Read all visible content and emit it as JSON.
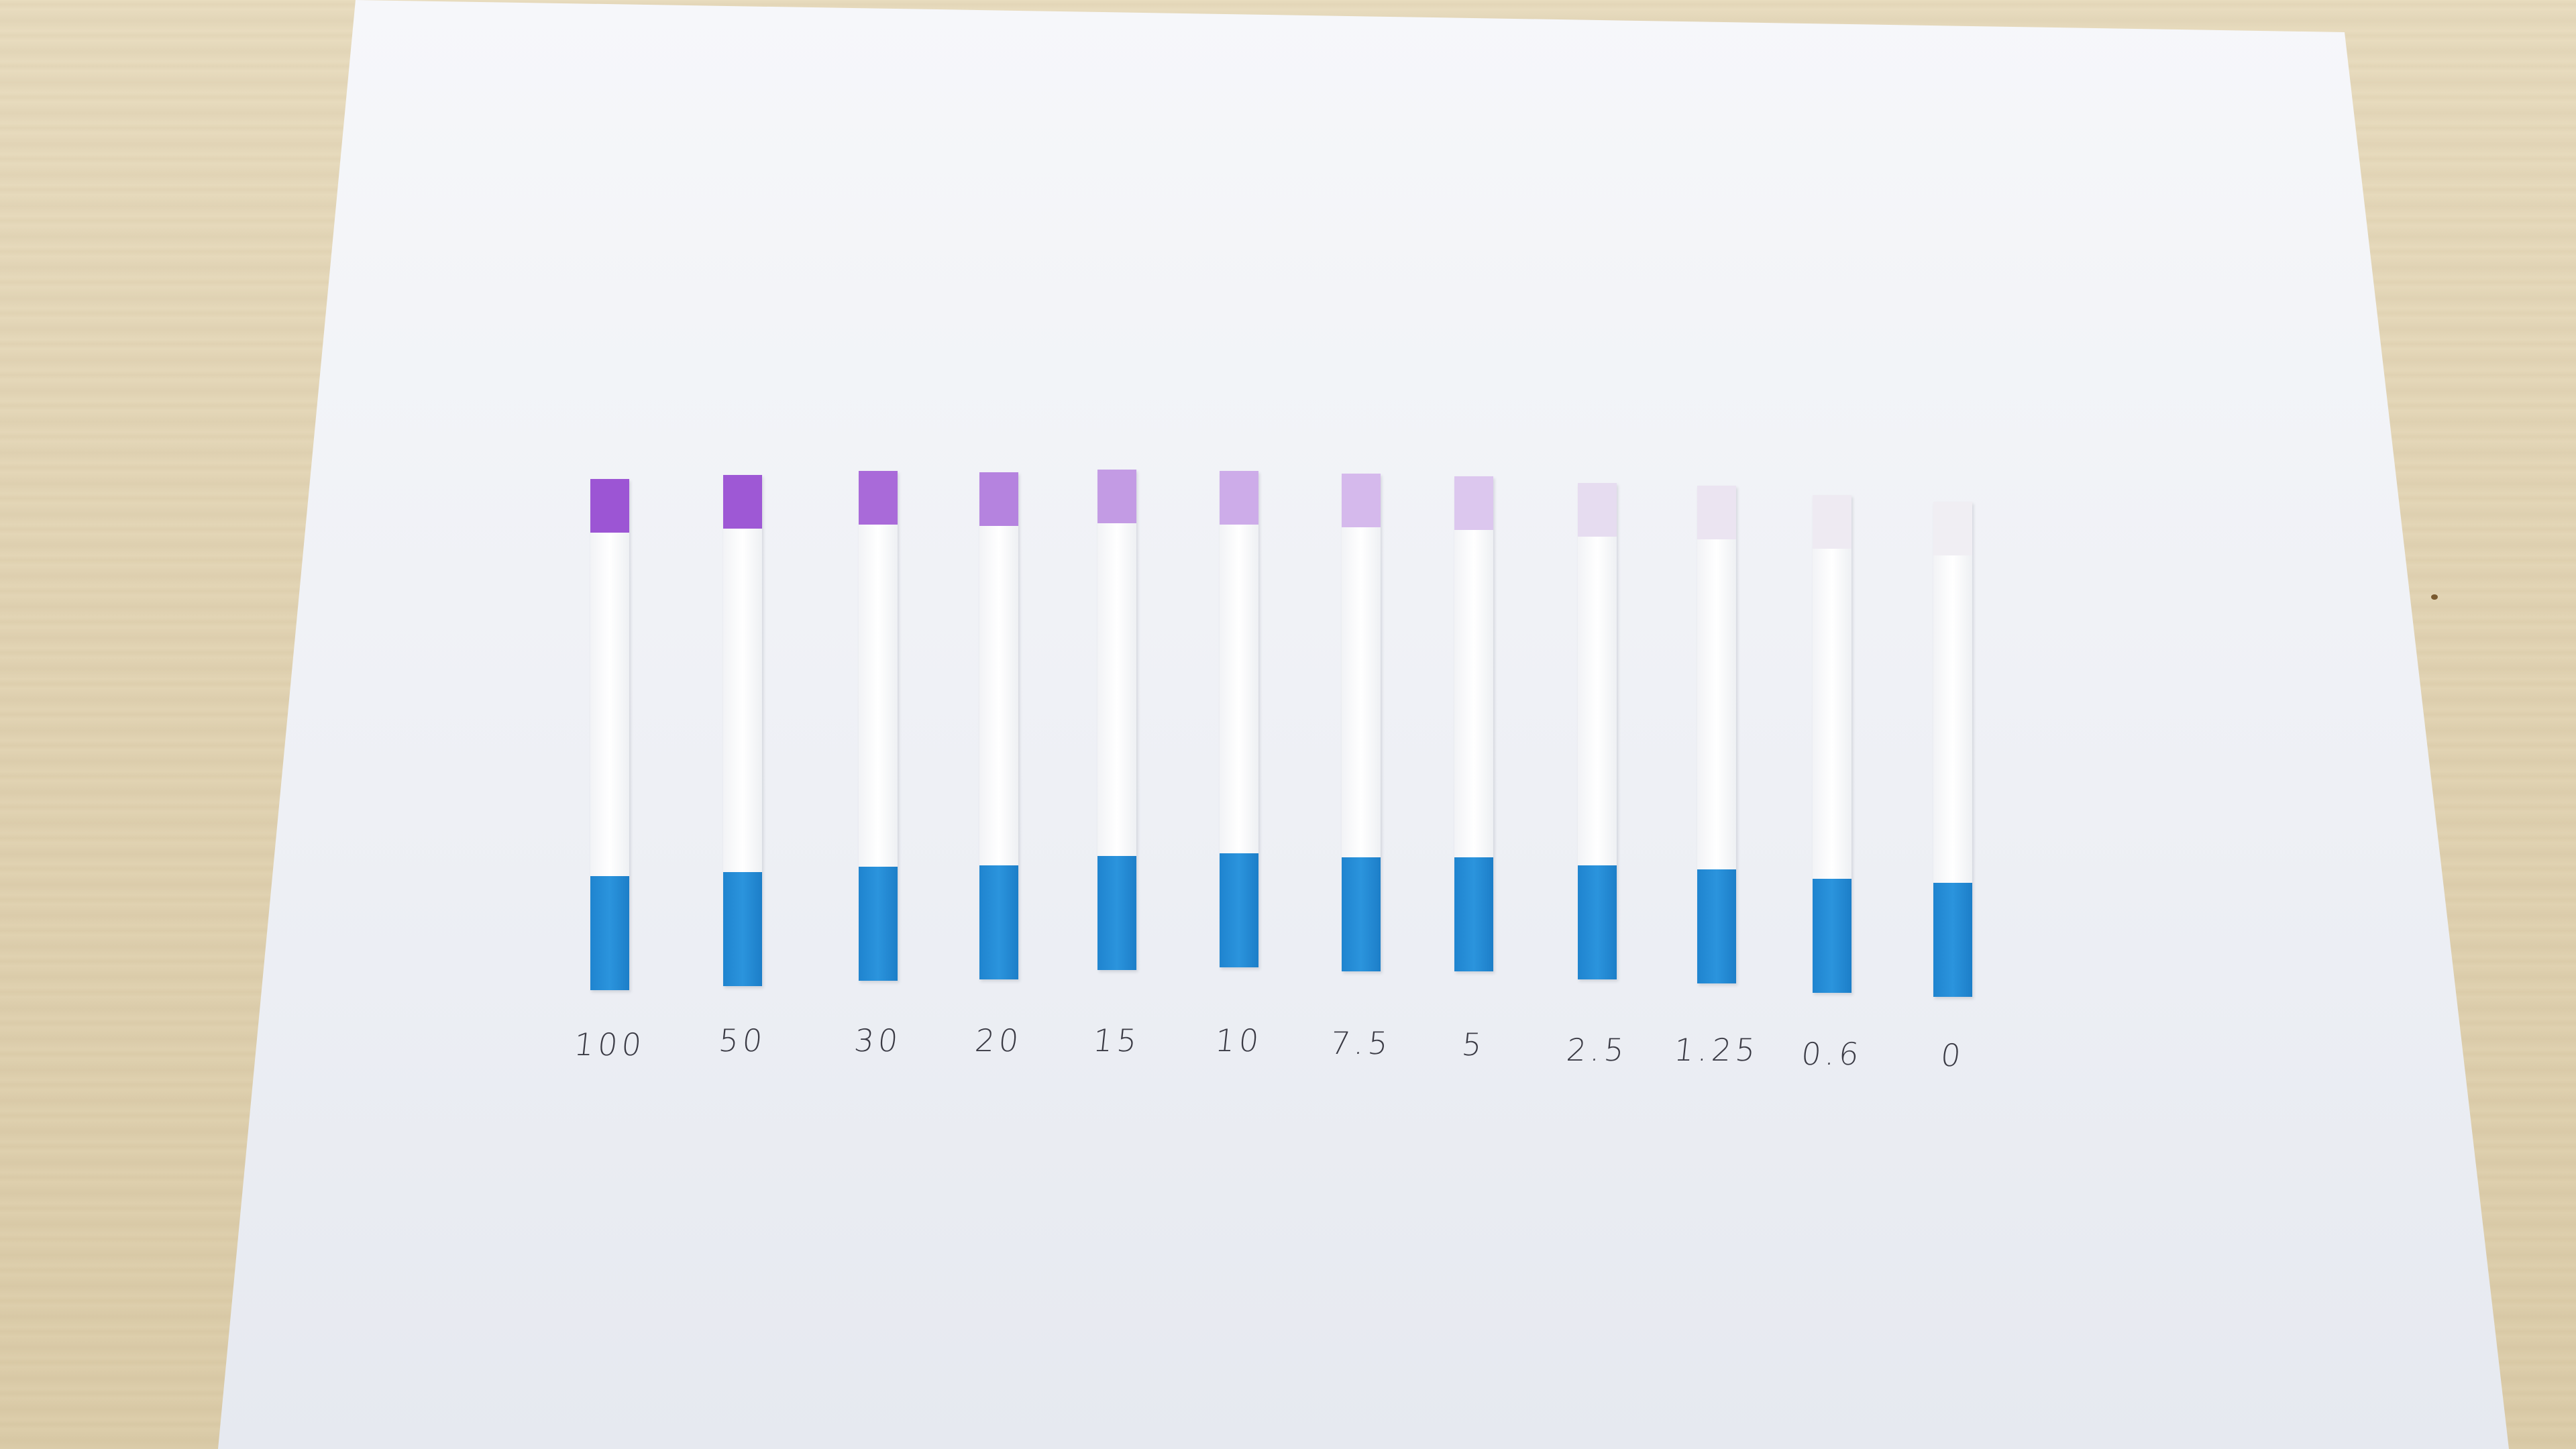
{
  "photo": {
    "subject": "",
    "colors": {
      "table": "#e2d4b4",
      "paper": "#f2f4f8",
      "blue_handle": "#2590d9",
      "pad_strongest": "#9a52d2",
      "label_ink": "#3a3a44"
    }
  },
  "strips": [
    {
      "label": "100",
      "pad_color": "#9c55d4"
    },
    {
      "label": "50",
      "pad_color": "#9e58d5"
    },
    {
      "label": "30",
      "pad_color": "#a96ad9"
    },
    {
      "label": "20",
      "pad_color": "#b583df"
    },
    {
      "label": "15",
      "pad_color": "#c39be4"
    },
    {
      "label": "10",
      "pad_color": "#cdace9"
    },
    {
      "label": "7.5",
      "pad_color": "#d5b9ec"
    },
    {
      "label": "5",
      "pad_color": "#dcc7ee"
    },
    {
      "label": "2.5",
      "pad_color": "#e6dcf0"
    },
    {
      "label": "1.25",
      "pad_color": "#ebe4f1"
    },
    {
      "label": "0.6",
      "pad_color": "#eeeaf2"
    },
    {
      "label": "0",
      "pad_color": "#f0eef3"
    }
  ]
}
